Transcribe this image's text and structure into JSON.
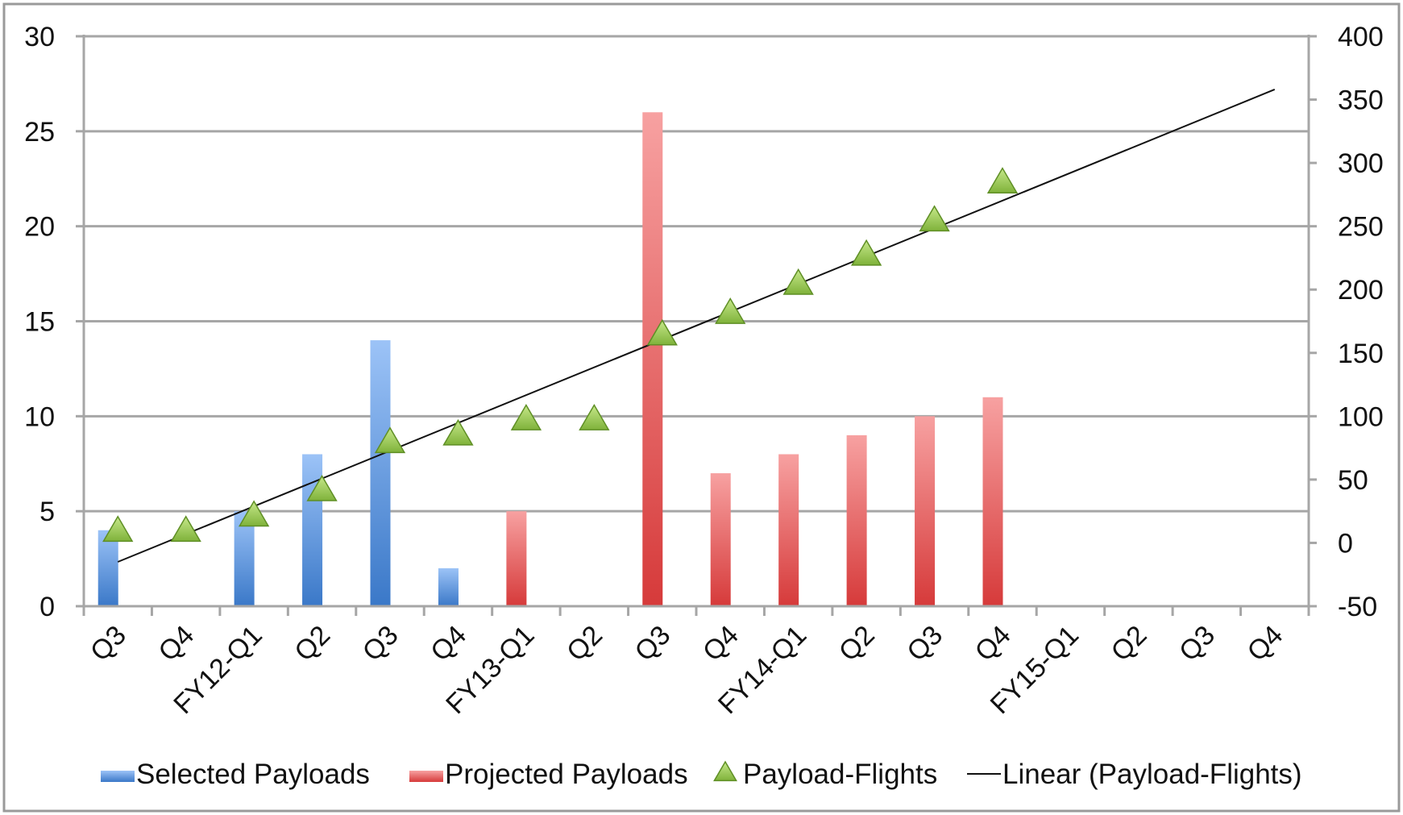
{
  "chart_data": {
    "type": "bar",
    "title": "",
    "xlabel": "",
    "ylabel": "",
    "categories": [
      "Q3",
      "Q4",
      "FY12-Q1",
      "Q2",
      "Q3",
      "Q4",
      "FY13-Q1",
      "Q2",
      "Q3",
      "Q4",
      "FY14-Q1",
      "Q2",
      "Q3",
      "Q4",
      "FY15-Q1",
      "Q2",
      "Q3",
      "Q4"
    ],
    "ylim": [
      0,
      30
    ],
    "y_ticks": [
      "0",
      "5",
      "10",
      "15",
      "20",
      "25",
      "30"
    ],
    "y2lim": [
      -50,
      400
    ],
    "y2_ticks": [
      "-50",
      "0",
      "50",
      "100",
      "150",
      "200",
      "250",
      "300",
      "350",
      "400"
    ],
    "grid": true,
    "legend_position": "bottom",
    "series": [
      {
        "name": "Selected Payloads",
        "type": "bar",
        "axis": "left",
        "color": "#4a86d4",
        "values": [
          4,
          null,
          5,
          8,
          14,
          2,
          null,
          null,
          null,
          null,
          null,
          null,
          null,
          null,
          null,
          null,
          null,
          null
        ]
      },
      {
        "name": "Projected Payloads",
        "type": "bar",
        "axis": "left",
        "color": "#d94040",
        "values": [
          null,
          null,
          null,
          null,
          null,
          null,
          5,
          null,
          26,
          7,
          8,
          9,
          10,
          11,
          null,
          null,
          null,
          null
        ]
      },
      {
        "name": "Payload-Flights",
        "type": "scatter",
        "axis": "right",
        "color": "#8dc63f",
        "values": [
          10,
          10,
          22,
          42,
          80,
          86,
          98,
          98,
          165,
          182,
          205,
          228,
          255,
          285,
          null,
          null,
          null,
          null
        ]
      },
      {
        "name": "Linear (Payload-Flights)",
        "type": "line",
        "axis": "right",
        "color": "#111111",
        "values": [
          -15,
          null,
          null,
          null,
          null,
          null,
          null,
          null,
          null,
          null,
          null,
          null,
          null,
          null,
          null,
          null,
          null,
          358
        ]
      }
    ]
  }
}
